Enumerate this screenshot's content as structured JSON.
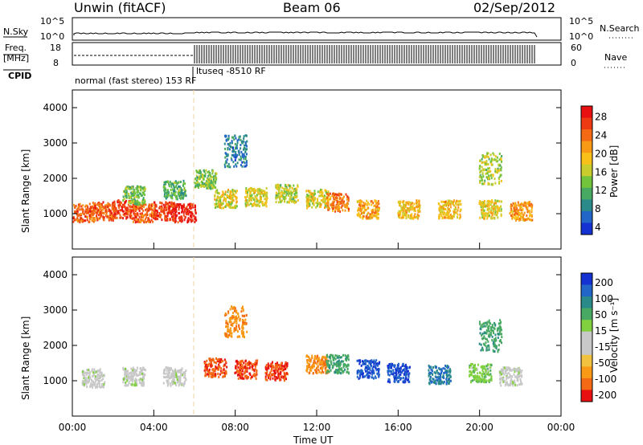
{
  "header": {
    "station": "Unwin (fitACF)",
    "beam": "Beam 06",
    "date": "02/Sep/2012"
  },
  "strips": {
    "nsky_label": "N.Sky",
    "nsky_ticks": [
      "10^5",
      "10^0"
    ],
    "nsearch_label": "N.Search",
    "nsearch_ticks": [
      "10^5",
      "10^0"
    ],
    "freq_label_1": "Freq.",
    "freq_label_2": "[MHz]",
    "freq_ticks": [
      "18",
      "8"
    ],
    "nave_label": "Nave",
    "nave_ticks": [
      "60",
      "0"
    ],
    "cpid_label": "CPID",
    "cpid_text_1": "normal (fast stereo) 153 RF",
    "cpid_text_2": "ltuseq -8510 RF"
  },
  "colors": {
    "power": [
      "#1432d2",
      "#2266c8",
      "#2a8a8a",
      "#48aa62",
      "#72c43c",
      "#c8cc2c",
      "#f8c018",
      "#f89a16",
      "#f46a14",
      "#ee3a12",
      "#e81010"
    ],
    "velocity": [
      "#e81010",
      "#f46a14",
      "#f89a16",
      "#f0c240",
      "#c8c8c8",
      "#c8c8c8",
      "#80d040",
      "#48aa62",
      "#2a8a8a",
      "#2266c8",
      "#1432d2"
    ]
  },
  "chart_data": [
    {
      "type": "heatmap",
      "name": "power",
      "xlabel": "",
      "ylabel": "Slant Range [km]",
      "ylim": [
        0,
        4500
      ],
      "yticks": [
        "1000",
        "2000",
        "3000",
        "4000"
      ],
      "xlim": [
        0,
        24
      ],
      "colorbar": {
        "label": "Power [dB]",
        "ticks": [
          "28",
          "24",
          "20",
          "16",
          "12",
          "8",
          "4"
        ]
      },
      "samples": [
        {
          "x": 0.5,
          "y": 1050,
          "v": 24
        },
        {
          "x": 1.5,
          "y": 1100,
          "v": 24
        },
        {
          "x": 2.5,
          "y": 1150,
          "v": 26
        },
        {
          "x": 3.5,
          "y": 1050,
          "v": 24
        },
        {
          "x": 4.5,
          "y": 1100,
          "v": 26
        },
        {
          "x": 5.5,
          "y": 1050,
          "v": 28
        },
        {
          "x": 3.0,
          "y": 1550,
          "v": 12
        },
        {
          "x": 5.0,
          "y": 1700,
          "v": 10
        },
        {
          "x": 6.5,
          "y": 2000,
          "v": 12
        },
        {
          "x": 7.5,
          "y": 1450,
          "v": 16
        },
        {
          "x": 9.0,
          "y": 1500,
          "v": 16
        },
        {
          "x": 10.5,
          "y": 1600,
          "v": 14
        },
        {
          "x": 12.0,
          "y": 1450,
          "v": 16
        },
        {
          "x": 13.0,
          "y": 1350,
          "v": 22
        },
        {
          "x": 14.5,
          "y": 1150,
          "v": 20
        },
        {
          "x": 16.5,
          "y": 1150,
          "v": 18
        },
        {
          "x": 18.5,
          "y": 1150,
          "v": 18
        },
        {
          "x": 20.5,
          "y": 1150,
          "v": 16
        },
        {
          "x": 22.0,
          "y": 1100,
          "v": 20
        },
        {
          "x": 8.0,
          "y": 2800,
          "v": 6
        },
        {
          "x": 20.5,
          "y": 2300,
          "v": 14
        }
      ]
    },
    {
      "type": "heatmap",
      "name": "velocity",
      "xlabel": "Time UT",
      "ylabel": "Slant Range [km]",
      "ylim": [
        0,
        4500
      ],
      "yticks": [
        "1000",
        "2000",
        "3000",
        "4000"
      ],
      "xlim": [
        0,
        24
      ],
      "xticks": [
        "00:00",
        "04:00",
        "08:00",
        "12:00",
        "16:00",
        "20:00",
        "00:00"
      ],
      "colorbar": {
        "label": "Velocity [m s⁻¹]",
        "ticks": [
          "200",
          "100",
          "50",
          "15",
          "-15",
          "-50",
          "-100",
          "-200"
        ]
      },
      "samples": [
        {
          "x": 1.0,
          "y": 1100,
          "v": 0
        },
        {
          "x": 3.0,
          "y": 1150,
          "v": 0
        },
        {
          "x": 5.0,
          "y": 1150,
          "v": 0
        },
        {
          "x": 7.0,
          "y": 1400,
          "v": -200
        },
        {
          "x": 8.5,
          "y": 1350,
          "v": -200
        },
        {
          "x": 10.0,
          "y": 1300,
          "v": -200
        },
        {
          "x": 12.0,
          "y": 1500,
          "v": -150
        },
        {
          "x": 13.0,
          "y": 1500,
          "v": 100
        },
        {
          "x": 14.5,
          "y": 1350,
          "v": 200
        },
        {
          "x": 16.0,
          "y": 1250,
          "v": 200
        },
        {
          "x": 18.0,
          "y": 1200,
          "v": 150
        },
        {
          "x": 20.0,
          "y": 1250,
          "v": 50
        },
        {
          "x": 21.5,
          "y": 1150,
          "v": 0
        },
        {
          "x": 8.0,
          "y": 2700,
          "v": -150
        },
        {
          "x": 20.5,
          "y": 2300,
          "v": 100
        }
      ]
    }
  ]
}
